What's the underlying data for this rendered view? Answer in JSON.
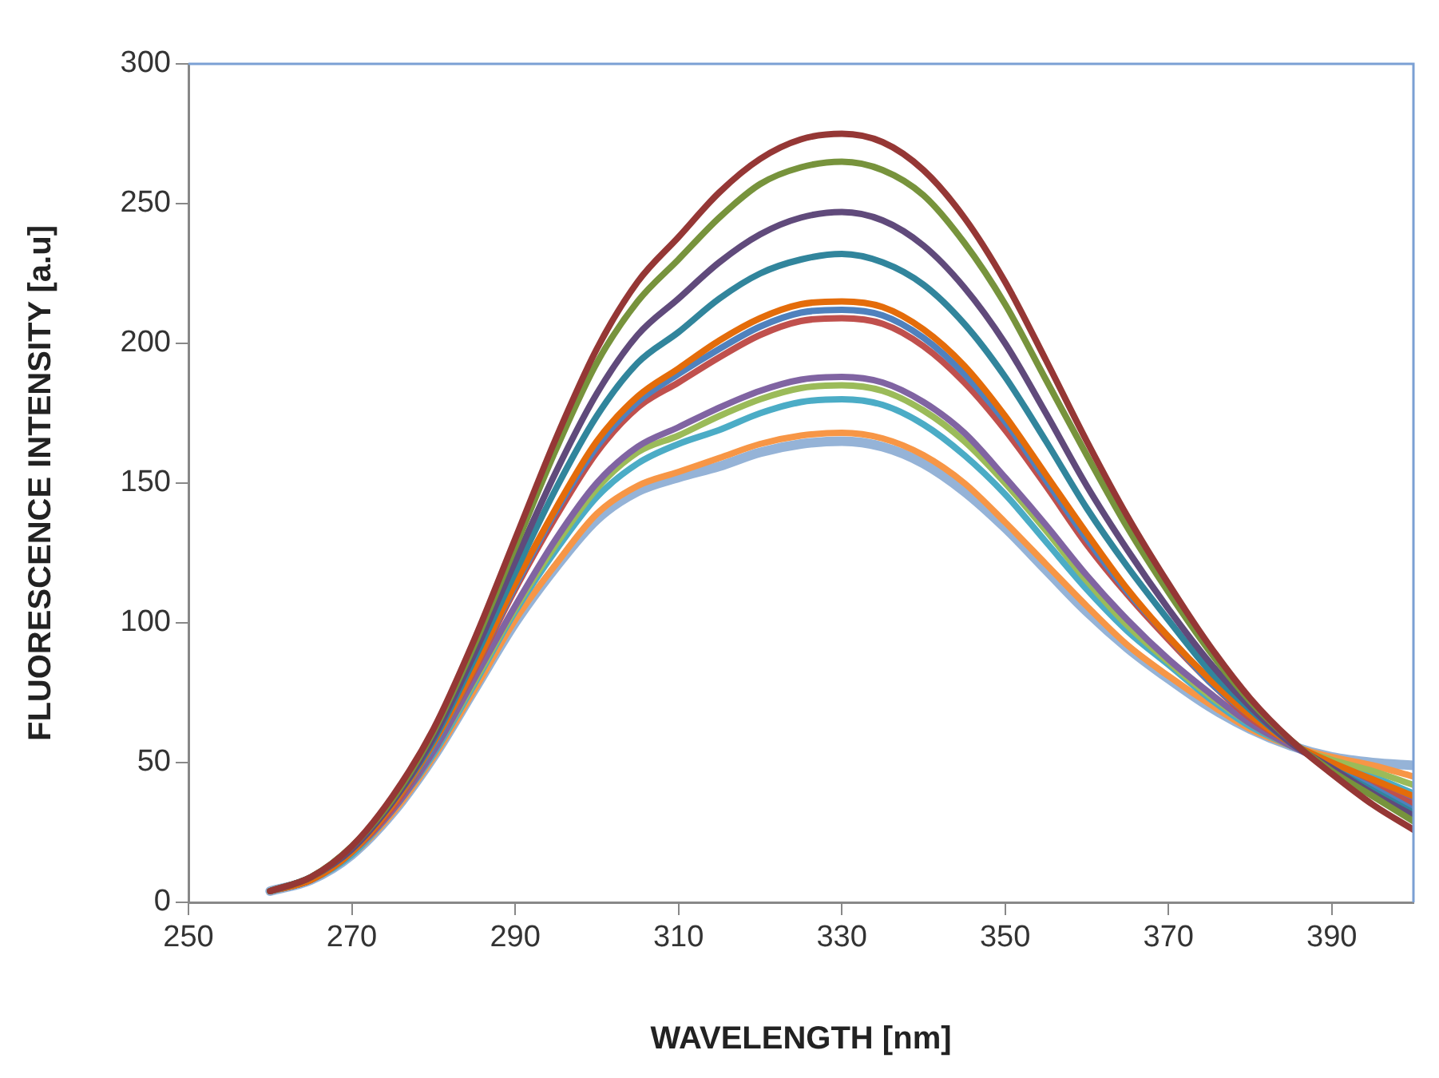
{
  "chart_data": {
    "type": "line",
    "xlabel": "WAVELENGTH [nm]",
    "ylabel": "FLUORESCENCE INTENSITY [a.u]",
    "x": [
      260,
      265,
      270,
      275,
      280,
      285,
      290,
      295,
      300,
      305,
      310,
      315,
      320,
      325,
      330,
      335,
      340,
      345,
      350,
      355,
      360,
      365,
      370,
      375,
      380,
      385,
      390,
      395,
      400
    ],
    "xlim": [
      250,
      400
    ],
    "xticks": [
      250,
      270,
      290,
      310,
      330,
      350,
      370,
      390
    ],
    "ylim": [
      0,
      300
    ],
    "yticks": [
      0,
      50,
      100,
      150,
      200,
      250,
      300
    ],
    "grid": false,
    "legend": false,
    "marker": "none",
    "line_style": "solid",
    "series": [
      {
        "color": "#953735",
        "values": [
          4,
          9,
          20,
          38,
          62,
          94,
          130,
          166,
          198,
          222,
          238,
          254,
          266,
          273,
          275,
          272,
          262,
          245,
          222,
          194,
          165,
          138,
          114,
          92,
          73,
          58,
          46,
          35,
          26
        ]
      },
      {
        "color": "#77933c",
        "values": [
          4,
          9,
          20,
          37,
          61,
          92,
          127,
          162,
          193,
          215,
          230,
          245,
          257,
          263,
          265,
          262,
          253,
          236,
          214,
          187,
          160,
          134,
          111,
          90,
          72,
          58,
          47,
          38,
          29
        ]
      },
      {
        "color": "#604a7b",
        "values": [
          4,
          9,
          19,
          36,
          59,
          89,
          122,
          154,
          182,
          203,
          216,
          229,
          239,
          245,
          247,
          244,
          235,
          220,
          200,
          175,
          149,
          126,
          105,
          86,
          70,
          57,
          48,
          39,
          31
        ]
      },
      {
        "color": "#31859c",
        "values": [
          4,
          9,
          19,
          36,
          58,
          87,
          118,
          148,
          174,
          193,
          204,
          216,
          225,
          230,
          232,
          229,
          221,
          207,
          188,
          165,
          141,
          120,
          101,
          83,
          69,
          57,
          48,
          40,
          32
        ]
      },
      {
        "color": "#e46c0a",
        "values": [
          4,
          8,
          18,
          35,
          57,
          84,
          114,
          141,
          165,
          181,
          191,
          201,
          209,
          214,
          215,
          213,
          205,
          192,
          174,
          153,
          132,
          112,
          95,
          80,
          67,
          57,
          50,
          44,
          38
        ]
      },
      {
        "color": "#4f81bd",
        "values": [
          4,
          8,
          18,
          35,
          56,
          84,
          113,
          140,
          163,
          179,
          189,
          198,
          206,
          211,
          212,
          210,
          202,
          189,
          172,
          151,
          130,
          111,
          95,
          79,
          67,
          57,
          48,
          41,
          33
        ]
      },
      {
        "color": "#c0504d",
        "values": [
          4,
          8,
          18,
          34,
          56,
          83,
          112,
          138,
          161,
          177,
          186,
          195,
          203,
          208,
          209,
          207,
          199,
          186,
          169,
          149,
          128,
          110,
          94,
          79,
          66,
          57,
          49,
          42,
          35
        ]
      },
      {
        "color": "#8064a2",
        "values": [
          4,
          8,
          18,
          33,
          54,
          80,
          106,
          130,
          150,
          163,
          170,
          177,
          183,
          187,
          188,
          186,
          179,
          168,
          152,
          135,
          117,
          101,
          87,
          75,
          64,
          56,
          49,
          43,
          36
        ]
      },
      {
        "color": "#9bbb59",
        "values": [
          4,
          8,
          18,
          33,
          54,
          79,
          105,
          128,
          148,
          161,
          167,
          174,
          180,
          184,
          185,
          183,
          176,
          165,
          150,
          133,
          115,
          99,
          86,
          74,
          64,
          56,
          51,
          47,
          42
        ]
      },
      {
        "color": "#4bacc6",
        "values": [
          4,
          8,
          17,
          33,
          53,
          78,
          104,
          126,
          145,
          157,
          164,
          169,
          175,
          179,
          180,
          178,
          171,
          160,
          146,
          129,
          112,
          97,
          85,
          73,
          63,
          56,
          50,
          45,
          39
        ]
      },
      {
        "color": "#f79646",
        "values": [
          4,
          8,
          17,
          32,
          52,
          76,
          101,
          121,
          139,
          149,
          154,
          159,
          164,
          167,
          168,
          166,
          160,
          150,
          136,
          121,
          106,
          92,
          81,
          71,
          62,
          56,
          52,
          49,
          45
        ]
      },
      {
        "color": "#95b3d7",
        "values": [
          4,
          8,
          17,
          32,
          52,
          76,
          100,
          120,
          137,
          147,
          152,
          156,
          161,
          164,
          165,
          163,
          157,
          147,
          134,
          119,
          104,
          91,
          80,
          70,
          62,
          56,
          52,
          50,
          49
        ]
      }
    ]
  }
}
